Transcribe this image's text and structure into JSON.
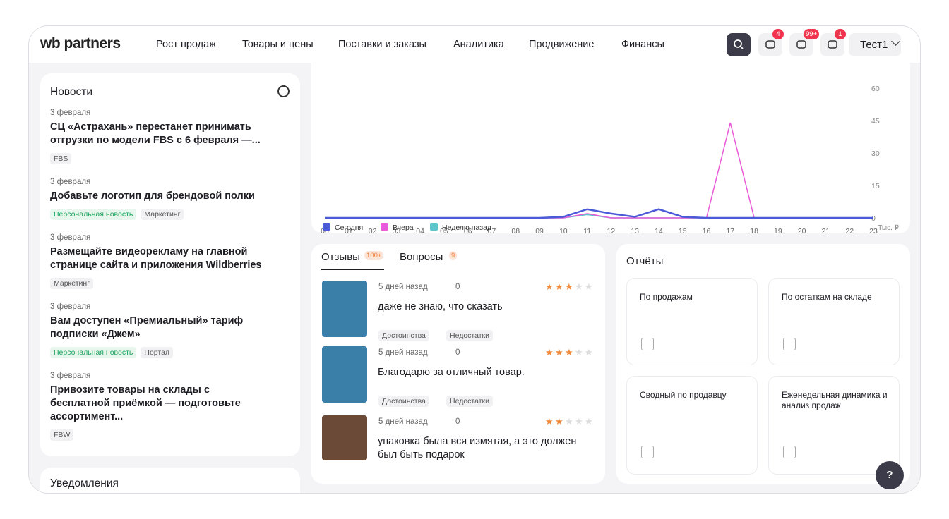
{
  "header": {
    "logo": "wb partners",
    "nav": [
      "Рост продаж",
      "Товары и цены",
      "Поставки и заказы",
      "Аналитика",
      "Продвижение",
      "Финансы"
    ],
    "badges": [
      "4",
      "99+",
      "1"
    ],
    "user": "Тест1"
  },
  "news": {
    "title": "Новости",
    "items": [
      {
        "date": "3 февраля",
        "title": "СЦ «Астрахань» перестанет принимать отгрузки по модели FBS с 6 февраля —...",
        "tags": [
          "FBS"
        ]
      },
      {
        "date": "3 февраля",
        "title": "Добавьте логотип для брендовой полки",
        "tags": [
          "Персональная новость",
          "Маркетинг"
        ]
      },
      {
        "date": "3 февраля",
        "title": "Размещайте видеорекламу на главной странице сайта и приложения Wildberries",
        "tags": [
          "Маркетинг"
        ]
      },
      {
        "date": "3 февраля",
        "title": "Вам доступен «Премиальный» тариф подписки «Джем»",
        "tags": [
          "Персональная новость",
          "Портал"
        ]
      },
      {
        "date": "3 февраля",
        "title": "Привозите товары на склады с бесплатной приёмкой — подготовьте ассортимент...",
        "tags": [
          "FBW"
        ]
      }
    ],
    "notifications": "Уведомления"
  },
  "chart_data": {
    "type": "line",
    "categories": [
      "00",
      "01",
      "02",
      "03",
      "04",
      "05",
      "06",
      "07",
      "08",
      "09",
      "10",
      "11",
      "12",
      "13",
      "14",
      "15",
      "16",
      "17",
      "18",
      "19",
      "20",
      "21",
      "22",
      "23"
    ],
    "series": [
      {
        "name": "Сегодня",
        "color": "#4b5bd8",
        "values": [
          0,
          0,
          0,
          0,
          0,
          0,
          0,
          0,
          0,
          0,
          0.5,
          4,
          2,
          0.5,
          4,
          0.5,
          0,
          0,
          0,
          0,
          0,
          0,
          0,
          0
        ]
      },
      {
        "name": "Вчера",
        "color": "#e85ad8",
        "values": [
          0,
          0,
          0,
          0,
          0,
          0,
          0,
          0,
          0,
          0,
          0,
          2,
          0,
          0,
          0,
          0,
          0,
          44,
          0,
          0,
          0,
          0,
          0,
          0
        ]
      },
      {
        "name": "Неделю назад",
        "color": "#5cc6cc",
        "values": [
          0,
          0,
          0,
          0,
          0,
          0,
          0,
          0,
          0,
          0,
          0,
          1.5,
          0,
          0,
          0,
          0,
          0,
          0,
          0,
          0,
          0,
          0,
          0,
          0
        ]
      }
    ],
    "ylim": [
      0,
      60
    ],
    "yticks": [
      0,
      15,
      30,
      45,
      60
    ],
    "unit": "Тыс. ₽",
    "grid": false
  },
  "reviews": {
    "tabs": [
      {
        "label": "Отзывы",
        "count": "100+"
      },
      {
        "label": "Вопросы",
        "count": "9"
      }
    ],
    "items": [
      {
        "time": "5 дней назад",
        "attachments": "0",
        "text": "даже не знаю, что сказать",
        "rating": 3,
        "tags": [
          "Достоинства",
          "Недостатки"
        ]
      },
      {
        "time": "5 дней назад",
        "attachments": "0",
        "text": "Благодарю за отличный товар.",
        "rating": 3,
        "tags": [
          "Достоинства",
          "Недостатки"
        ]
      },
      {
        "time": "5 дней назад",
        "attachments": "0",
        "text": "упаковка была вся измятая, а это должен был быть подарок",
        "rating": 2,
        "tags": []
      }
    ]
  },
  "reports": {
    "title": "Отчёты",
    "items": [
      "По продажам",
      "По остаткам на складе",
      "Сводный по продавцу",
      "Еженедельная динамика и анализ продаж"
    ]
  },
  "help": "?"
}
